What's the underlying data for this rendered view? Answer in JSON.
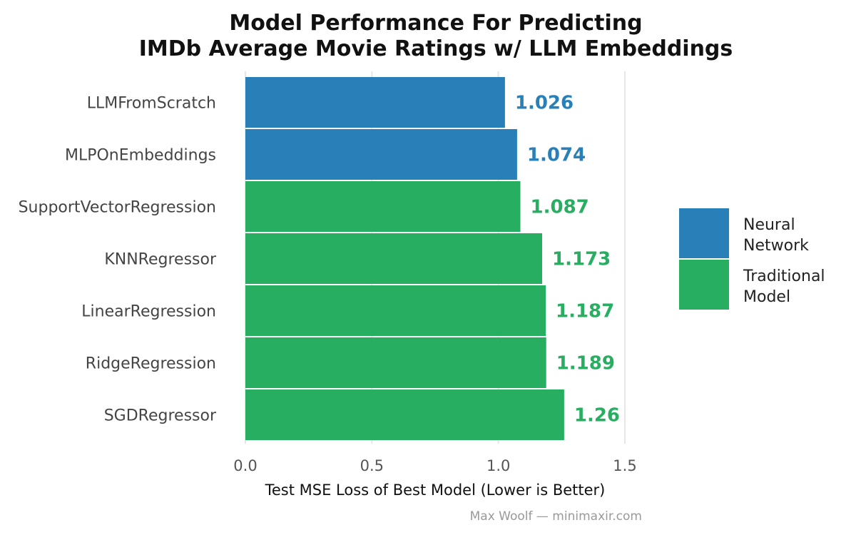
{
  "chart_data": {
    "type": "bar",
    "orientation": "horizontal",
    "title_lines": [
      "Model Performance For Predicting",
      "IMDb Average Movie Ratings w/ LLM Embeddings"
    ],
    "xlabel": "Test MSE Loss of Best Model (Lower is Better)",
    "xlim": [
      0,
      1.5
    ],
    "xticks": [
      "0.0",
      "0.5",
      "1.0",
      "1.5"
    ],
    "grid": true,
    "legend_position": "right",
    "categories": [
      "LLMFromScratch",
      "MLPOnEmbeddings",
      "SupportVectorRegression",
      "KNNRegressor",
      "LinearRegression",
      "RidgeRegression",
      "SGDRegressor"
    ],
    "values": [
      1.026,
      1.074,
      1.087,
      1.173,
      1.187,
      1.189,
      1.26
    ],
    "value_labels": [
      "1.026",
      "1.074",
      "1.087",
      "1.173",
      "1.187",
      "1.189",
      "1.26"
    ],
    "groups": [
      "Neural Network",
      "Neural Network",
      "Traditional Model",
      "Traditional Model",
      "Traditional Model",
      "Traditional Model",
      "Traditional Model"
    ],
    "legend": [
      {
        "name": "Neural Network",
        "lines": [
          "Neural",
          "Network"
        ],
        "color": "#2980b9"
      },
      {
        "name": "Traditional Model",
        "lines": [
          "Traditional",
          "Model"
        ],
        "color": "#27ae60"
      }
    ],
    "caption": "Max Woolf — minimaxir.com"
  }
}
